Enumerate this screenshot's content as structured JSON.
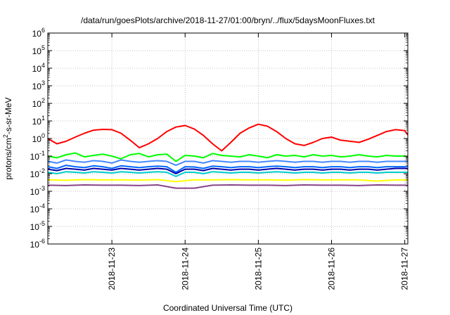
{
  "chart_data": {
    "type": "line",
    "title": "/data/run/goesPlots/archive/2018-11-27/01:00/bryn/../flux/5daysMoonFluxes.txt",
    "xlabel": "Coordinated Universal Time (UTC)",
    "ylabel": {
      "prefix": "protons/cm",
      "sup": "2",
      "suffix": "-s-sr-MeV"
    },
    "x_scale": "time",
    "xlim": [
      "2018-11-22T03:00",
      "2018-11-27T01:00"
    ],
    "x_ticks": [
      {
        "value": "2018-11-23T00:00",
        "label": "2018-11-23"
      },
      {
        "value": "2018-11-24T00:00",
        "label": "2018-11-24"
      },
      {
        "value": "2018-11-25T00:00",
        "label": "2018-11-25"
      },
      {
        "value": "2018-11-26T00:00",
        "label": "2018-11-26"
      },
      {
        "value": "2018-11-27T00:00",
        "label": "2018-11-27"
      }
    ],
    "y_scale": "log",
    "ylim": [
      1e-06,
      1000000.0
    ],
    "y_ticks": [
      {
        "base": "10",
        "exp": "6"
      },
      {
        "base": "10",
        "exp": "5"
      },
      {
        "base": "10",
        "exp": "4"
      },
      {
        "base": "10",
        "exp": "3"
      },
      {
        "base": "10",
        "exp": "2"
      },
      {
        "base": "10",
        "exp": "1"
      },
      {
        "base": "10",
        "exp": "0"
      },
      {
        "base": "10",
        "exp": "-1"
      },
      {
        "base": "10",
        "exp": "-2"
      },
      {
        "base": "10",
        "exp": "-3"
      },
      {
        "base": "10",
        "exp": "-4"
      },
      {
        "base": "10",
        "exp": "-5"
      },
      {
        "base": "10",
        "exp": "-6"
      }
    ],
    "grid": true,
    "series": [
      {
        "color": "#ff0000",
        "x": [
          "2018-11-22T03:00",
          "2018-11-22T06:00",
          "2018-11-22T09:00",
          "2018-11-22T12:00",
          "2018-11-22T15:00",
          "2018-11-22T18:00",
          "2018-11-22T21:00",
          "2018-11-23T00:00",
          "2018-11-23T03:00",
          "2018-11-23T06:00",
          "2018-11-23T09:00",
          "2018-11-23T12:00",
          "2018-11-23T15:00",
          "2018-11-23T18:00",
          "2018-11-23T21:00",
          "2018-11-24T00:00",
          "2018-11-24T03:00",
          "2018-11-24T06:00",
          "2018-11-24T09:00",
          "2018-11-24T12:00",
          "2018-11-24T15:00",
          "2018-11-24T18:00",
          "2018-11-24T21:00",
          "2018-11-25T00:00",
          "2018-11-25T03:00",
          "2018-11-25T06:00",
          "2018-11-25T09:00",
          "2018-11-25T12:00",
          "2018-11-25T15:00",
          "2018-11-25T18:00",
          "2018-11-25T21:00",
          "2018-11-26T00:00",
          "2018-11-26T03:00",
          "2018-11-26T06:00",
          "2018-11-26T09:00",
          "2018-11-26T12:00",
          "2018-11-26T15:00",
          "2018-11-26T18:00",
          "2018-11-26T21:00",
          "2018-11-27T00:00",
          "2018-11-27T01:00"
        ],
        "values": [
          1.0,
          0.5,
          0.7,
          1.2,
          2.0,
          3.0,
          3.3,
          3.2,
          2.0,
          0.8,
          0.3,
          0.5,
          1.0,
          2.5,
          4.5,
          5.5,
          3.5,
          1.5,
          0.5,
          0.2,
          0.6,
          2.0,
          4.0,
          6.5,
          5.0,
          2.5,
          1.0,
          0.5,
          0.4,
          0.6,
          1.0,
          1.2,
          0.8,
          0.7,
          0.6,
          0.9,
          1.5,
          2.5,
          3.2,
          2.8,
          1.6
        ]
      },
      {
        "color": "#00ff00",
        "x": [
          "2018-11-22T03:00",
          "2018-11-22T06:00",
          "2018-11-22T09:00",
          "2018-11-22T12:00",
          "2018-11-22T15:00",
          "2018-11-22T18:00",
          "2018-11-22T21:00",
          "2018-11-23T00:00",
          "2018-11-23T03:00",
          "2018-11-23T06:00",
          "2018-11-23T09:00",
          "2018-11-23T12:00",
          "2018-11-23T15:00",
          "2018-11-23T18:00",
          "2018-11-23T21:00",
          "2018-11-24T00:00",
          "2018-11-24T03:00",
          "2018-11-24T06:00",
          "2018-11-24T09:00",
          "2018-11-24T12:00",
          "2018-11-24T15:00",
          "2018-11-24T18:00",
          "2018-11-24T21:00",
          "2018-11-25T00:00",
          "2018-11-25T03:00",
          "2018-11-25T06:00",
          "2018-11-25T09:00",
          "2018-11-25T12:00",
          "2018-11-25T15:00",
          "2018-11-25T18:00",
          "2018-11-25T21:00",
          "2018-11-26T00:00",
          "2018-11-26T03:00",
          "2018-11-26T06:00",
          "2018-11-26T09:00",
          "2018-11-26T12:00",
          "2018-11-26T15:00",
          "2018-11-26T18:00",
          "2018-11-26T21:00",
          "2018-11-27T00:00",
          "2018-11-27T01:00"
        ],
        "values": [
          0.1,
          0.08,
          0.12,
          0.15,
          0.09,
          0.11,
          0.13,
          0.1,
          0.07,
          0.12,
          0.14,
          0.09,
          0.12,
          0.13,
          0.05,
          0.11,
          0.1,
          0.08,
          0.14,
          0.11,
          0.1,
          0.09,
          0.12,
          0.1,
          0.08,
          0.12,
          0.1,
          0.11,
          0.09,
          0.12,
          0.1,
          0.11,
          0.09,
          0.1,
          0.12,
          0.1,
          0.09,
          0.11,
          0.1,
          0.1,
          0.09
        ]
      },
      {
        "color": "#4488ff",
        "x": [
          "2018-11-22T03:00",
          "2018-11-22T06:00",
          "2018-11-22T09:00",
          "2018-11-22T12:00",
          "2018-11-22T15:00",
          "2018-11-22T18:00",
          "2018-11-22T21:00",
          "2018-11-23T00:00",
          "2018-11-23T03:00",
          "2018-11-23T06:00",
          "2018-11-23T09:00",
          "2018-11-23T12:00",
          "2018-11-23T15:00",
          "2018-11-23T18:00",
          "2018-11-23T21:00",
          "2018-11-24T00:00",
          "2018-11-24T03:00",
          "2018-11-24T06:00",
          "2018-11-24T09:00",
          "2018-11-24T12:00",
          "2018-11-24T15:00",
          "2018-11-24T18:00",
          "2018-11-24T21:00",
          "2018-11-25T00:00",
          "2018-11-25T03:00",
          "2018-11-25T06:00",
          "2018-11-25T09:00",
          "2018-11-25T12:00",
          "2018-11-25T15:00",
          "2018-11-25T18:00",
          "2018-11-25T21:00",
          "2018-11-26T00:00",
          "2018-11-26T03:00",
          "2018-11-26T06:00",
          "2018-11-26T09:00",
          "2018-11-26T12:00",
          "2018-11-26T15:00",
          "2018-11-26T18:00",
          "2018-11-26T21:00",
          "2018-11-27T00:00",
          "2018-11-27T01:00"
        ],
        "values": [
          0.05,
          0.04,
          0.06,
          0.05,
          0.045,
          0.055,
          0.05,
          0.04,
          0.06,
          0.05,
          0.045,
          0.05,
          0.055,
          0.05,
          0.03,
          0.05,
          0.05,
          0.04,
          0.055,
          0.05,
          0.045,
          0.05,
          0.05,
          0.045,
          0.05,
          0.055,
          0.05,
          0.045,
          0.05,
          0.05,
          0.045,
          0.05,
          0.05,
          0.045,
          0.05,
          0.05,
          0.045,
          0.05,
          0.05,
          0.05,
          0.05
        ]
      },
      {
        "color": "#0066ff",
        "x": [
          "2018-11-22T03:00",
          "2018-11-22T06:00",
          "2018-11-22T09:00",
          "2018-11-22T12:00",
          "2018-11-22T15:00",
          "2018-11-22T18:00",
          "2018-11-22T21:00",
          "2018-11-23T00:00",
          "2018-11-23T03:00",
          "2018-11-23T06:00",
          "2018-11-23T09:00",
          "2018-11-23T12:00",
          "2018-11-23T15:00",
          "2018-11-23T18:00",
          "2018-11-23T21:00",
          "2018-11-24T00:00",
          "2018-11-24T03:00",
          "2018-11-24T06:00",
          "2018-11-24T09:00",
          "2018-11-24T12:00",
          "2018-11-24T15:00",
          "2018-11-24T18:00",
          "2018-11-24T21:00",
          "2018-11-25T00:00",
          "2018-11-25T03:00",
          "2018-11-25T06:00",
          "2018-11-25T09:00",
          "2018-11-25T12:00",
          "2018-11-25T15:00",
          "2018-11-25T18:00",
          "2018-11-25T21:00",
          "2018-11-26T00:00",
          "2018-11-26T03:00",
          "2018-11-26T06:00",
          "2018-11-26T09:00",
          "2018-11-26T12:00",
          "2018-11-26T15:00",
          "2018-11-26T18:00",
          "2018-11-26T21:00",
          "2018-11-27T00:00",
          "2018-11-27T01:00"
        ],
        "values": [
          0.025,
          0.02,
          0.03,
          0.025,
          0.022,
          0.028,
          0.025,
          0.02,
          0.028,
          0.025,
          0.022,
          0.025,
          0.027,
          0.025,
          0.012,
          0.025,
          0.024,
          0.02,
          0.027,
          0.025,
          0.022,
          0.025,
          0.025,
          0.022,
          0.025,
          0.027,
          0.025,
          0.022,
          0.025,
          0.025,
          0.022,
          0.025,
          0.025,
          0.022,
          0.025,
          0.025,
          0.022,
          0.025,
          0.025,
          0.025,
          0.025
        ]
      },
      {
        "color": "#0000aa",
        "x": [
          "2018-11-22T03:00",
          "2018-11-22T06:00",
          "2018-11-22T09:00",
          "2018-11-22T12:00",
          "2018-11-22T15:00",
          "2018-11-22T18:00",
          "2018-11-22T21:00",
          "2018-11-23T00:00",
          "2018-11-23T03:00",
          "2018-11-23T06:00",
          "2018-11-23T09:00",
          "2018-11-23T12:00",
          "2018-11-23T15:00",
          "2018-11-23T18:00",
          "2018-11-23T21:00",
          "2018-11-24T00:00",
          "2018-11-24T03:00",
          "2018-11-24T06:00",
          "2018-11-24T09:00",
          "2018-11-24T12:00",
          "2018-11-24T15:00",
          "2018-11-24T18:00",
          "2018-11-24T21:00",
          "2018-11-25T00:00",
          "2018-11-25T03:00",
          "2018-11-25T06:00",
          "2018-11-25T09:00",
          "2018-11-25T12:00",
          "2018-11-25T15:00",
          "2018-11-25T18:00",
          "2018-11-25T21:00",
          "2018-11-26T00:00",
          "2018-11-26T03:00",
          "2018-11-26T06:00",
          "2018-11-26T09:00",
          "2018-11-26T12:00",
          "2018-11-26T15:00",
          "2018-11-26T18:00",
          "2018-11-26T21:00",
          "2018-11-27T00:00",
          "2018-11-27T01:00"
        ],
        "values": [
          0.018,
          0.015,
          0.02,
          0.018,
          0.016,
          0.02,
          0.018,
          0.016,
          0.02,
          0.018,
          0.016,
          0.018,
          0.02,
          0.018,
          0.01,
          0.018,
          0.018,
          0.015,
          0.02,
          0.018,
          0.016,
          0.018,
          0.018,
          0.016,
          0.018,
          0.02,
          0.018,
          0.016,
          0.018,
          0.018,
          0.016,
          0.018,
          0.018,
          0.016,
          0.018,
          0.018,
          0.016,
          0.018,
          0.02,
          0.02,
          0.019
        ]
      },
      {
        "color": "#00cccc",
        "x": [
          "2018-11-22T03:00",
          "2018-11-22T06:00",
          "2018-11-22T09:00",
          "2018-11-22T12:00",
          "2018-11-22T15:00",
          "2018-11-22T18:00",
          "2018-11-22T21:00",
          "2018-11-23T00:00",
          "2018-11-23T03:00",
          "2018-11-23T06:00",
          "2018-11-23T09:00",
          "2018-11-23T12:00",
          "2018-11-23T15:00",
          "2018-11-23T18:00",
          "2018-11-23T21:00",
          "2018-11-24T00:00",
          "2018-11-24T03:00",
          "2018-11-24T06:00",
          "2018-11-24T09:00",
          "2018-11-24T12:00",
          "2018-11-24T15:00",
          "2018-11-24T18:00",
          "2018-11-24T21:00",
          "2018-11-25T00:00",
          "2018-11-25T03:00",
          "2018-11-25T06:00",
          "2018-11-25T09:00",
          "2018-11-25T12:00",
          "2018-11-25T15:00",
          "2018-11-25T18:00",
          "2018-11-25T21:00",
          "2018-11-26T00:00",
          "2018-11-26T03:00",
          "2018-11-26T06:00",
          "2018-11-26T09:00",
          "2018-11-26T12:00",
          "2018-11-26T15:00",
          "2018-11-26T18:00",
          "2018-11-26T21:00",
          "2018-11-27T00:00",
          "2018-11-27T01:00"
        ],
        "values": [
          0.012,
          0.01,
          0.013,
          0.012,
          0.011,
          0.013,
          0.012,
          0.011,
          0.013,
          0.012,
          0.011,
          0.012,
          0.013,
          0.012,
          0.007,
          0.012,
          0.012,
          0.01,
          0.013,
          0.012,
          0.011,
          0.012,
          0.012,
          0.011,
          0.012,
          0.013,
          0.012,
          0.011,
          0.012,
          0.012,
          0.011,
          0.012,
          0.012,
          0.011,
          0.012,
          0.012,
          0.011,
          0.012,
          0.012,
          0.012,
          0.012
        ]
      },
      {
        "color": "#ffff00",
        "x": [
          "2018-11-22T03:00",
          "2018-11-22T09:00",
          "2018-11-22T15:00",
          "2018-11-22T21:00",
          "2018-11-23T03:00",
          "2018-11-23T09:00",
          "2018-11-23T15:00",
          "2018-11-23T21:00",
          "2018-11-24T03:00",
          "2018-11-24T09:00",
          "2018-11-24T15:00",
          "2018-11-24T21:00",
          "2018-11-25T03:00",
          "2018-11-25T09:00",
          "2018-11-25T15:00",
          "2018-11-25T21:00",
          "2018-11-26T03:00",
          "2018-11-26T09:00",
          "2018-11-26T15:00",
          "2018-11-26T21:00",
          "2018-11-27T01:00"
        ],
        "values": [
          0.0045,
          0.0042,
          0.0046,
          0.0044,
          0.0045,
          0.0043,
          0.0046,
          0.0035,
          0.0045,
          0.0044,
          0.0046,
          0.0044,
          0.0045,
          0.0043,
          0.0046,
          0.0044,
          0.0045,
          0.0044,
          0.0038,
          0.0045,
          0.0044
        ]
      },
      {
        "color": "#884488",
        "x": [
          "2018-11-22T03:00",
          "2018-11-22T09:00",
          "2018-11-22T15:00",
          "2018-11-22T21:00",
          "2018-11-23T03:00",
          "2018-11-23T09:00",
          "2018-11-23T15:00",
          "2018-11-23T21:00",
          "2018-11-24T03:00",
          "2018-11-24T09:00",
          "2018-11-24T15:00",
          "2018-11-24T21:00",
          "2018-11-25T03:00",
          "2018-11-25T09:00",
          "2018-11-25T15:00",
          "2018-11-25T21:00",
          "2018-11-26T03:00",
          "2018-11-26T09:00",
          "2018-11-26T15:00",
          "2018-11-26T21:00",
          "2018-11-27T01:00"
        ],
        "values": [
          0.0022,
          0.0021,
          0.0023,
          0.0022,
          0.0022,
          0.0021,
          0.0023,
          0.0015,
          0.0015,
          0.0022,
          0.0023,
          0.0022,
          0.0022,
          0.0021,
          0.0023,
          0.0022,
          0.0022,
          0.0021,
          0.0023,
          0.0022,
          0.0022
        ]
      }
    ]
  }
}
